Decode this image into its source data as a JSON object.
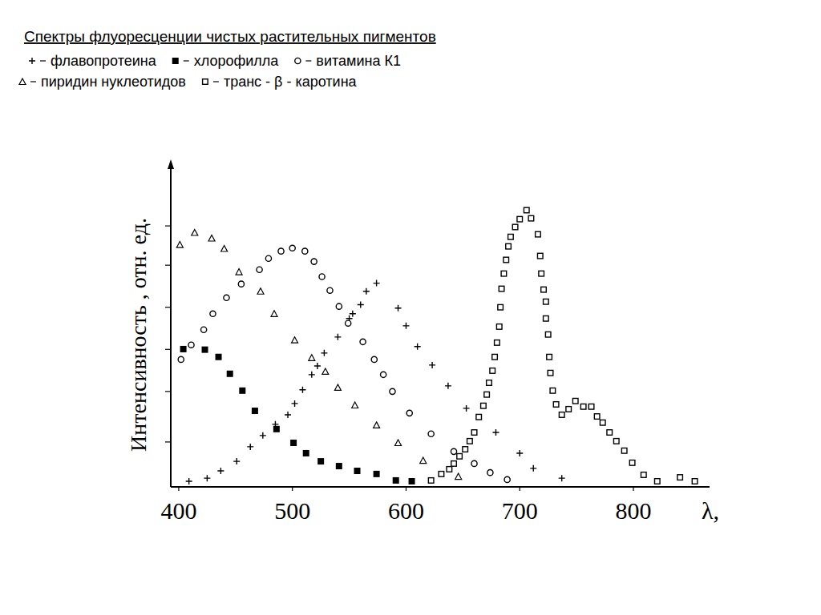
{
  "chart_data": {
    "type": "scatter",
    "title": "Спектры флуоресценции чистых растительных пигментов",
    "x_label": "λ,",
    "y_label": "Интенсивность , отн. ед.",
    "xlim": [
      393,
      867
    ],
    "xticks": [
      400,
      500,
      600,
      700,
      800
    ],
    "ylim": [
      0,
      115
    ],
    "yticks": [
      16,
      34,
      49,
      64,
      79,
      93
    ],
    "tick_labels": "x",
    "grid": false,
    "series": [
      {
        "name": "флавопротеина",
        "marker": "plus",
        "color": "#000000",
        "x": [
          409,
          425,
          437,
          451,
          463,
          474,
          485,
          496,
          502,
          509,
          517,
          522,
          528,
          540,
          550,
          553,
          560,
          565,
          574,
          593,
          600,
          610,
          623,
          637,
          653,
          679,
          700,
          712,
          737
        ],
        "values": [
          2.0,
          3.1,
          5.7,
          9.1,
          14.3,
          18.3,
          22.3,
          25.7,
          29.7,
          34.6,
          40.0,
          43.1,
          47.7,
          53.4,
          60.0,
          61.7,
          64.9,
          69.7,
          72.6,
          63.7,
          57.4,
          50.0,
          43.4,
          36.0,
          28.0,
          19.4,
          12.0,
          6.6,
          3.1
        ]
      },
      {
        "name": "хлорофилла",
        "marker": "square-filled",
        "color": "#000000",
        "x": [
          404,
          423,
          435,
          445,
          456,
          467,
          486,
          501,
          512,
          525,
          541,
          557,
          574,
          591,
          605
        ],
        "values": [
          49.1,
          48.9,
          46.3,
          40.3,
          34.3,
          27.1,
          20.6,
          15.7,
          12.0,
          9.1,
          7.4,
          5.7,
          4.6,
          2.3,
          2.0
        ]
      },
      {
        "name": "витамина  К1",
        "marker": "circle",
        "color": "#000000",
        "x": [
          402,
          411,
          422,
          430,
          442,
          455,
          471,
          479,
          490,
          500,
          511,
          519,
          526,
          533,
          541,
          549,
          562,
          572,
          580,
          588,
          603,
          622,
          642,
          660,
          674,
          689
        ],
        "values": [
          45.4,
          50.6,
          56.0,
          61.7,
          67.4,
          72.3,
          77.4,
          81.4,
          84.0,
          85.1,
          84.0,
          80.3,
          74.9,
          70.0,
          64.3,
          58.3,
          51.7,
          45.4,
          40.0,
          34.0,
          26.3,
          18.9,
          12.6,
          8.3,
          5.1,
          2.6
        ]
      },
      {
        "name": "пиридин нуклеотидов",
        "marker": "triangle",
        "color": "#000000",
        "x": [
          401,
          414,
          429,
          440,
          453,
          472,
          484,
          502,
          517,
          529,
          540,
          555,
          574,
          593,
          615,
          646
        ],
        "values": [
          86.3,
          90.6,
          88.6,
          84.9,
          76.6,
          69.7,
          61.7,
          52.3,
          46.0,
          41.1,
          35.4,
          29.1,
          22.0,
          15.7,
          9.4,
          3.7
        ]
      },
      {
        "name": "транс - β - каротина",
        "marker": "square",
        "color": "#000000",
        "x": [
          622,
          631,
          638,
          642,
          647,
          652,
          656,
          660,
          664,
          668,
          671,
          673,
          676,
          678,
          680,
          682,
          683,
          684,
          686,
          688,
          690,
          692,
          696,
          700,
          706,
          710,
          716,
          718,
          719,
          721,
          723,
          723,
          725,
          726,
          727,
          729,
          732,
          737,
          743,
          749,
          756,
          763,
          768,
          773,
          779,
          785,
          792,
          799,
          809,
          821,
          841,
          854
        ],
        "values": [
          2.3,
          4.6,
          6.3,
          8.3,
          10.9,
          13.4,
          16.3,
          19.4,
          24.9,
          28.9,
          32.9,
          37.1,
          41.4,
          46.3,
          51.4,
          57.1,
          64.0,
          70.6,
          76.0,
          80.9,
          85.7,
          89.1,
          92.6,
          95.4,
          98.6,
          95.7,
          90.0,
          82.3,
          76.0,
          70.3,
          66.0,
          60.0,
          54.3,
          46.3,
          40.6,
          34.3,
          29.4,
          25.7,
          27.7,
          30.6,
          28.6,
          28.6,
          25.1,
          22.9,
          19.4,
          16.3,
          12.9,
          8.6,
          4.3,
          2.0,
          3.4,
          2.0
        ]
      }
    ]
  }
}
